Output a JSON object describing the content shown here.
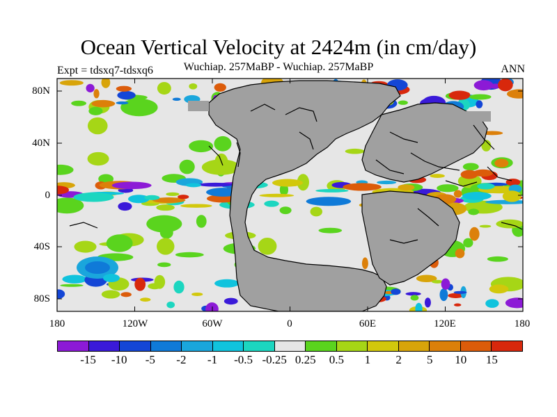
{
  "title": "Ocean Vertical Velocity at 2424m (in cm/day)",
  "subtitle": "Wuchiap. 257MaBP - Wuchiap. 257MaBP",
  "left_label": "Expt = tdsxq7-tdsxq6",
  "right_label": "ANN",
  "lat_ticks": [
    "80N",
    "40N",
    "0",
    "40S",
    "80S"
  ],
  "lon_ticks": [
    "180",
    "120W",
    "60W",
    "0",
    "60E",
    "120E",
    "180"
  ],
  "colorbar": {
    "labels": [
      "-15",
      "-10",
      "-5",
      "-2",
      "-1",
      "-0.5",
      "-0.25",
      "0.25",
      "0.5",
      "1",
      "2",
      "5",
      "10",
      "15"
    ],
    "colors": [
      "#8c1ad6",
      "#3a1ad9",
      "#1446d6",
      "#0f7ad8",
      "#1aa6dc",
      "#10c3dd",
      "#1cd6c0",
      "#e6e6e6",
      "#5ad41e",
      "#a6d616",
      "#d2c80c",
      "#d8a40a",
      "#dc800a",
      "#dc5c0a",
      "#d8280c"
    ]
  },
  "chart_data": {
    "type": "heatmap",
    "title": "Ocean Vertical Velocity at 2424m (in cm/day)",
    "subtitle": "Wuchiap. 257MaBP - Wuchiap. 257MaBP",
    "units": "cm/day",
    "variable": "Ocean vertical velocity difference",
    "x_range": [
      -180,
      180
    ],
    "y_range": [
      -90,
      90
    ],
    "contour_levels": [
      -15,
      -10,
      -5,
      -2,
      -1,
      -0.5,
      -0.25,
      0.25,
      0.5,
      1,
      2,
      5,
      10,
      15
    ],
    "land_color": "#a0a0a0",
    "missing_color": "#e6e6e6"
  }
}
